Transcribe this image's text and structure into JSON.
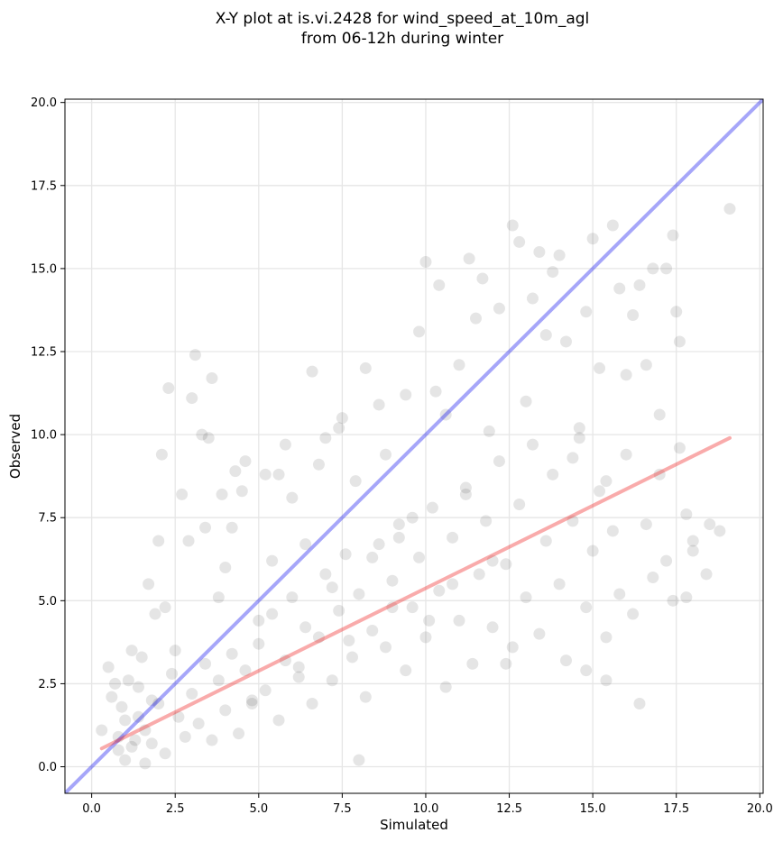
{
  "chart_data": {
    "type": "scatter",
    "title_line1": "X-Y plot at is.vi.2428 for wind_speed_at_10m_agl",
    "title_line2": "from 06-12h during winter",
    "xlabel": "Simulated",
    "ylabel": "Observed",
    "xlim": [
      -0.8,
      20.1
    ],
    "ylim": [
      -0.8,
      20.1
    ],
    "xticks": [
      0.0,
      2.5,
      5.0,
      7.5,
      10.0,
      12.5,
      15.0,
      17.5,
      20.0
    ],
    "yticks": [
      0.0,
      2.5,
      5.0,
      7.5,
      10.0,
      12.5,
      15.0,
      17.5,
      20.0
    ],
    "xtick_labels": [
      "0.0",
      "2.5",
      "5.0",
      "7.5",
      "10.0",
      "12.5",
      "15.0",
      "17.5",
      "20.0"
    ],
    "ytick_labels": [
      "0.0",
      "2.5",
      "5.0",
      "7.5",
      "10.0",
      "12.5",
      "15.0",
      "17.5",
      "20.0"
    ],
    "grid": true,
    "point_color": "#000000",
    "identity_line": {
      "x": [
        -0.8,
        20.1
      ],
      "y": [
        -0.8,
        20.1
      ],
      "color": "#0000ee"
    },
    "fit_line": {
      "x": [
        0.3,
        19.1
      ],
      "y": [
        0.55,
        9.9
      ],
      "color": "#ee2222"
    },
    "points": [
      [
        0.3,
        1.1
      ],
      [
        0.5,
        3.0
      ],
      [
        0.6,
        2.1
      ],
      [
        0.7,
        2.5
      ],
      [
        0.8,
        0.5
      ],
      [
        0.9,
        1.8
      ],
      [
        1.0,
        0.2
      ],
      [
        1.1,
        2.6
      ],
      [
        1.2,
        3.5
      ],
      [
        1.3,
        0.8
      ],
      [
        1.4,
        1.5
      ],
      [
        1.5,
        3.3
      ],
      [
        1.6,
        0.1
      ],
      [
        1.7,
        5.5
      ],
      [
        1.8,
        2.0
      ],
      [
        1.9,
        4.6
      ],
      [
        2.0,
        6.8
      ],
      [
        2.1,
        9.4
      ],
      [
        2.2,
        4.8
      ],
      [
        2.3,
        11.4
      ],
      [
        2.5,
        3.5
      ],
      [
        2.7,
        8.2
      ],
      [
        2.9,
        6.8
      ],
      [
        3.0,
        11.1
      ],
      [
        3.1,
        12.4
      ],
      [
        3.3,
        10.0
      ],
      [
        3.4,
        7.2
      ],
      [
        3.5,
        9.9
      ],
      [
        3.6,
        11.7
      ],
      [
        3.8,
        5.1
      ],
      [
        3.9,
        8.2
      ],
      [
        4.0,
        6.0
      ],
      [
        4.2,
        7.2
      ],
      [
        4.3,
        8.9
      ],
      [
        4.5,
        8.3
      ],
      [
        4.6,
        9.2
      ],
      [
        4.8,
        2.0
      ],
      [
        5.0,
        4.4
      ],
      [
        5.2,
        8.8
      ],
      [
        5.4,
        6.2
      ],
      [
        5.6,
        8.8
      ],
      [
        5.8,
        9.7
      ],
      [
        6.0,
        8.1
      ],
      [
        6.2,
        3.0
      ],
      [
        6.4,
        6.7
      ],
      [
        6.6,
        11.9
      ],
      [
        6.8,
        9.1
      ],
      [
        7.0,
        9.9
      ],
      [
        7.2,
        5.4
      ],
      [
        7.4,
        10.2
      ],
      [
        7.5,
        10.5
      ],
      [
        7.7,
        3.8
      ],
      [
        7.9,
        8.6
      ],
      [
        8.0,
        0.2
      ],
      [
        8.2,
        12.0
      ],
      [
        8.4,
        6.3
      ],
      [
        8.6,
        10.9
      ],
      [
        8.8,
        9.4
      ],
      [
        9.0,
        4.8
      ],
      [
        9.2,
        6.9
      ],
      [
        9.4,
        11.2
      ],
      [
        9.6,
        7.5
      ],
      [
        9.8,
        13.1
      ],
      [
        10.0,
        15.2
      ],
      [
        10.1,
        4.4
      ],
      [
        10.3,
        11.3
      ],
      [
        10.4,
        14.5
      ],
      [
        10.6,
        10.6
      ],
      [
        10.8,
        5.5
      ],
      [
        11.0,
        12.1
      ],
      [
        11.2,
        8.2
      ],
      [
        11.3,
        15.3
      ],
      [
        11.5,
        13.5
      ],
      [
        11.7,
        14.7
      ],
      [
        11.9,
        10.1
      ],
      [
        12.0,
        6.2
      ],
      [
        12.2,
        13.8
      ],
      [
        12.4,
        3.1
      ],
      [
        12.6,
        16.3
      ],
      [
        12.8,
        15.8
      ],
      [
        13.0,
        11.0
      ],
      [
        13.2,
        14.1
      ],
      [
        13.4,
        15.5
      ],
      [
        13.6,
        13.0
      ],
      [
        13.8,
        14.9
      ],
      [
        14.0,
        15.4
      ],
      [
        14.2,
        12.8
      ],
      [
        14.4,
        9.3
      ],
      [
        14.6,
        10.2
      ],
      [
        14.8,
        13.7
      ],
      [
        15.0,
        15.9
      ],
      [
        15.2,
        12.0
      ],
      [
        15.4,
        8.6
      ],
      [
        15.6,
        16.3
      ],
      [
        15.8,
        14.4
      ],
      [
        16.0,
        11.8
      ],
      [
        16.2,
        13.6
      ],
      [
        16.4,
        14.5
      ],
      [
        16.6,
        12.1
      ],
      [
        16.8,
        15.0
      ],
      [
        17.0,
        10.6
      ],
      [
        17.2,
        15.0
      ],
      [
        17.4,
        16.0
      ],
      [
        17.5,
        13.7
      ],
      [
        17.6,
        12.8
      ],
      [
        17.8,
        5.1
      ],
      [
        18.0,
        6.8
      ],
      [
        18.5,
        7.3
      ],
      [
        18.8,
        7.1
      ],
      [
        19.1,
        16.8
      ],
      [
        0.8,
        0.9
      ],
      [
        1.0,
        1.4
      ],
      [
        1.2,
        0.6
      ],
      [
        1.4,
        2.4
      ],
      [
        1.6,
        1.1
      ],
      [
        1.8,
        0.7
      ],
      [
        2.0,
        1.9
      ],
      [
        2.2,
        0.4
      ],
      [
        2.4,
        2.8
      ],
      [
        2.6,
        1.5
      ],
      [
        2.8,
        0.9
      ],
      [
        3.0,
        2.2
      ],
      [
        3.2,
        1.3
      ],
      [
        3.4,
        3.1
      ],
      [
        3.6,
        0.8
      ],
      [
        3.8,
        2.6
      ],
      [
        4.0,
        1.7
      ],
      [
        4.2,
        3.4
      ],
      [
        4.4,
        1.0
      ],
      [
        4.6,
        2.9
      ],
      [
        4.8,
        1.9
      ],
      [
        5.0,
        3.7
      ],
      [
        5.2,
        2.3
      ],
      [
        5.4,
        4.6
      ],
      [
        5.6,
        1.4
      ],
      [
        5.8,
        3.2
      ],
      [
        6.0,
        5.1
      ],
      [
        6.2,
        2.7
      ],
      [
        6.4,
        4.2
      ],
      [
        6.6,
        1.9
      ],
      [
        6.8,
        3.9
      ],
      [
        7.0,
        5.8
      ],
      [
        7.2,
        2.6
      ],
      [
        7.4,
        4.7
      ],
      [
        7.6,
        6.4
      ],
      [
        7.8,
        3.3
      ],
      [
        8.0,
        5.2
      ],
      [
        8.2,
        2.1
      ],
      [
        8.4,
        4.1
      ],
      [
        8.6,
        6.7
      ],
      [
        8.8,
        3.6
      ],
      [
        9.0,
        5.6
      ],
      [
        9.2,
        7.3
      ],
      [
        9.4,
        2.9
      ],
      [
        9.6,
        4.8
      ],
      [
        9.8,
        6.3
      ],
      [
        10.0,
        3.9
      ],
      [
        10.2,
        7.8
      ],
      [
        10.4,
        5.3
      ],
      [
        10.6,
        2.4
      ],
      [
        10.8,
        6.9
      ],
      [
        11.0,
        4.4
      ],
      [
        11.2,
        8.4
      ],
      [
        11.4,
        3.1
      ],
      [
        11.6,
        5.8
      ],
      [
        11.8,
        7.4
      ],
      [
        12.0,
        4.2
      ],
      [
        12.2,
        9.2
      ],
      [
        12.4,
        6.1
      ],
      [
        12.6,
        3.6
      ],
      [
        12.8,
        7.9
      ],
      [
        13.0,
        5.1
      ],
      [
        13.2,
        9.7
      ],
      [
        13.4,
        4.0
      ],
      [
        13.6,
        6.8
      ],
      [
        13.8,
        8.8
      ],
      [
        14.0,
        5.5
      ],
      [
        14.2,
        3.2
      ],
      [
        14.4,
        7.4
      ],
      [
        14.6,
        9.9
      ],
      [
        14.8,
        4.8
      ],
      [
        15.0,
        6.5
      ],
      [
        15.2,
        8.3
      ],
      [
        15.4,
        3.9
      ],
      [
        15.6,
        7.1
      ],
      [
        15.8,
        5.2
      ],
      [
        16.0,
        9.4
      ],
      [
        16.2,
        4.6
      ],
      [
        16.4,
        1.9
      ],
      [
        16.6,
        7.3
      ],
      [
        16.8,
        5.7
      ],
      [
        17.0,
        8.8
      ],
      [
        17.2,
        6.2
      ],
      [
        17.4,
        5.0
      ],
      [
        17.6,
        9.6
      ],
      [
        17.8,
        7.6
      ],
      [
        18.0,
        6.5
      ],
      [
        18.4,
        5.8
      ],
      [
        14.8,
        2.9
      ],
      [
        15.4,
        2.6
      ]
    ]
  }
}
